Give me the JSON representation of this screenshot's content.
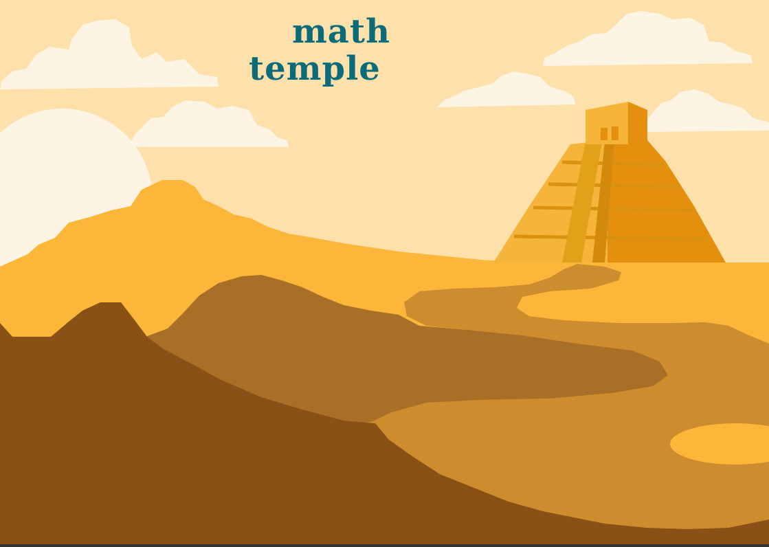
{
  "title": {
    "line1": "math",
    "line2": "temple"
  },
  "colors": {
    "sky": "#fde0aa",
    "sun": "#fdf4e3",
    "cloud": "#fdf4e3",
    "title": "#0c6b78",
    "hill_light": "#fcb73a",
    "path": "#cd8c2e",
    "hill_mid": "#a96f27",
    "hill_dark": "#8a5116",
    "pyramid_light": "#f5b53a",
    "pyramid_dark": "#e48f0d",
    "pyramid_stripe": "#d9920f"
  }
}
